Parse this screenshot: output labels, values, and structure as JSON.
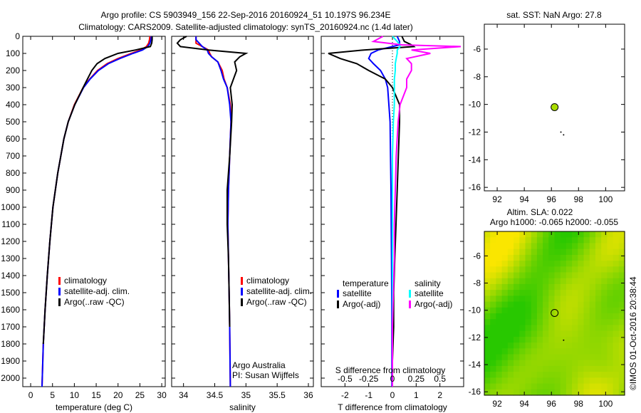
{
  "title_line1": "Argo profile: CS 5903949_156 22-Sep-2016 20160924_51 10.197S 96.234E",
  "title_line2": "Climatology: CARS2009. Satellite-adjusted climatology: synTS_20160924.nc (1.4d later)",
  "credit": "©IMOS 01-Oct-2016 20:38:44",
  "colors": {
    "climatology": "#ff0000",
    "satellite": "#0000ff",
    "argo": "#000000",
    "sal_satellite": "#00ffff",
    "sal_argo": "#ff00ff",
    "dot": "#aadd00"
  },
  "chart_data": [
    {
      "type": "line",
      "id": "temperature",
      "xlabel": "temperature (deg C)",
      "xlim": [
        -1.8,
        30.8
      ],
      "ylim": [
        2050,
        0
      ],
      "xticks": [
        "0",
        "5",
        "10",
        "15",
        "20",
        "25",
        "30"
      ],
      "xtick_values": [
        0,
        5,
        10,
        15,
        20,
        25,
        30
      ],
      "yticks": [
        "0",
        "100",
        "200",
        "300",
        "400",
        "500",
        "600",
        "700",
        "800",
        "900",
        "1000",
        "1100",
        "1200",
        "1300",
        "1400",
        "1500",
        "1600",
        "1700",
        "1800",
        "1900",
        "2000"
      ],
      "legend": [
        "climatology",
        "satellite-adj. clim.",
        "Argo(..raw -QC)"
      ],
      "legend_position": "bottom-center",
      "depth": [
        0,
        20,
        40,
        60,
        80,
        100,
        130,
        160,
        200,
        250,
        300,
        400,
        500,
        600,
        800,
        1000,
        1200,
        1400,
        1600,
        1800,
        2050
      ],
      "series": [
        {
          "name": "climatology",
          "color": "#ff0000",
          "values": [
            27.3,
            27.2,
            27.0,
            26.5,
            25.2,
            23.0,
            20.0,
            17.5,
            15.3,
            13.5,
            12.0,
            10.0,
            8.6,
            7.6,
            6.2,
            5.1,
            4.4,
            3.8,
            3.3,
            2.9,
            2.6
          ]
        },
        {
          "name": "satellite-adj. clim.",
          "color": "#0000ff",
          "values": [
            27.6,
            27.5,
            27.3,
            26.8,
            25.6,
            23.4,
            20.4,
            17.8,
            15.5,
            13.6,
            12.1,
            10.1,
            8.6,
            7.6,
            6.2,
            5.1,
            4.4,
            3.8,
            3.3,
            2.9,
            2.6
          ]
        },
        {
          "name": "Argo(..raw -QC)",
          "color": "#000000",
          "values": [
            27.8,
            27.8,
            27.7,
            27.4,
            24.0,
            20.0,
            17.0,
            15.2,
            14.0,
            13.0,
            12.0,
            10.1,
            8.6,
            7.6,
            6.2,
            5.1,
            4.4,
            3.8,
            3.3,
            2.9
          ]
        }
      ]
    },
    {
      "type": "line",
      "id": "salinity",
      "xlabel": "salinity",
      "xlim": [
        33.81,
        36.08
      ],
      "ylim": [
        2050,
        0
      ],
      "xticks": [
        "34",
        "34.5",
        "35",
        "35.5",
        "36"
      ],
      "xtick_values": [
        34,
        34.5,
        35,
        35.5,
        36
      ],
      "legend": [
        "climatology",
        "satellite-adj. clim.",
        "Argo(..raw -QC)"
      ],
      "annotation": [
        "Argo Australia",
        "PI: Susan Wijffels"
      ],
      "depth": [
        0,
        20,
        40,
        60,
        80,
        100,
        120,
        150,
        200,
        250,
        300,
        400,
        500,
        700,
        900,
        1100,
        1300,
        1500,
        1700,
        2050
      ],
      "series": [
        {
          "name": "climatology",
          "color": "#ff0000",
          "values": [
            34.2,
            34.2,
            34.2,
            34.3,
            34.4,
            34.42,
            34.45,
            34.55,
            34.62,
            34.65,
            34.7,
            34.75,
            34.76,
            34.74,
            34.72,
            34.71,
            34.72,
            34.73,
            34.74,
            34.75
          ]
        },
        {
          "name": "satellite-adj. clim.",
          "color": "#0000ff",
          "values": [
            34.2,
            34.2,
            34.25,
            34.3,
            34.38,
            34.4,
            34.45,
            34.55,
            34.6,
            34.64,
            34.7,
            34.74,
            34.76,
            34.74,
            34.72,
            34.71,
            34.72,
            34.73,
            34.74,
            34.75
          ]
        },
        {
          "name": "Argo(..raw -QC)",
          "color": "#000000",
          "values": [
            34.05,
            33.95,
            33.9,
            33.95,
            34.4,
            35.0,
            34.9,
            34.82,
            34.85,
            34.8,
            34.75,
            34.78,
            34.77,
            34.74,
            34.7,
            34.7,
            34.72,
            34.73,
            34.74
          ]
        }
      ]
    },
    {
      "type": "line",
      "id": "difference",
      "xlabel": "T difference from climatology",
      "x2label": "S difference from climatology",
      "xlim": [
        -3,
        3
      ],
      "x2lim": [
        -0.75,
        0.75
      ],
      "ylim": [
        2050,
        0
      ],
      "xticks": [
        "-2",
        "-1",
        "0",
        "1",
        "2"
      ],
      "xtick_values": [
        -2,
        -1,
        0,
        1,
        2
      ],
      "x2ticks": [
        "-0.5",
        "-0.25",
        "0",
        "0.25",
        "0.5"
      ],
      "x2tick_values": [
        -0.5,
        -0.25,
        0,
        0.25,
        0.5
      ],
      "legend_titles": [
        "temperature",
        "salinity"
      ],
      "legend": [
        "satellite",
        "Argo(-adj)",
        "satellite",
        "Argo(-adj)"
      ],
      "depth": [
        0,
        30,
        50,
        60,
        80,
        100,
        130,
        160,
        200,
        250,
        300,
        400,
        500,
        700,
        900,
        1100,
        1300,
        1500,
        1700,
        1900,
        2050
      ],
      "series": [
        {
          "name": "T satellite",
          "color": "#0000ff",
          "axis": "T",
          "values": [
            0.2,
            0.3,
            0.3,
            0.0,
            -0.6,
            -0.9,
            -1.0,
            -0.8,
            -0.5,
            -0.3,
            -0.2,
            -0.15,
            -0.1,
            -0.08,
            -0.06,
            -0.05,
            -0.04,
            -0.03,
            -0.02,
            -0.02,
            -0.02
          ]
        },
        {
          "name": "T Argo(-adj)",
          "color": "#000000",
          "axis": "T",
          "values": [
            0.4,
            0.5,
            0.8,
            0.9,
            -1.2,
            -2.7,
            -2.2,
            -1.5,
            -1.0,
            -0.3,
            0.0,
            0.3,
            0.3,
            0.25,
            0.2,
            0.15,
            0.1,
            0.05,
            0.05,
            0.0,
            0.0
          ]
        },
        {
          "name": "S satellite",
          "color": "#00ffff",
          "axis": "S",
          "values": [
            0.0,
            0.05,
            0.08,
            0.08,
            0.05,
            0.05,
            0.04,
            0.03,
            0.03,
            0.02,
            0.02,
            0.02,
            0.01,
            0.0,
            0.0,
            0.0,
            0.0,
            0.0,
            0.0,
            0.0,
            0.0
          ]
        },
        {
          "name": "S Argo(-adj)",
          "color": "#ff00ff",
          "axis": "S",
          "values": [
            -0.1,
            -0.2,
            0.1,
            0.72,
            0.2,
            0.4,
            0.15,
            0.2,
            0.2,
            0.15,
            0.15,
            0.08,
            0.06,
            0.04,
            0.03,
            0.02,
            0.02,
            0.01,
            0.0,
            0.0,
            0.0
          ]
        }
      ]
    },
    {
      "type": "scatter",
      "id": "sst_map",
      "title": "sat. SST: NaN Argo: 27.8",
      "xlim": [
        91.05,
        101.4
      ],
      "ylim": [
        -16.25,
        -4.2
      ],
      "xticks": [
        "92",
        "94",
        "96",
        "98",
        "100"
      ],
      "xtick_values": [
        92,
        94,
        96,
        98,
        100
      ],
      "yticks": [
        "-6",
        "-8",
        "-10",
        "-12",
        "-14",
        "-16"
      ],
      "ytick_values": [
        -6,
        -8,
        -10,
        -12,
        -14,
        -16
      ],
      "points": [
        {
          "lon": 96.234,
          "lat": -10.197,
          "label": "Argo"
        },
        {
          "lon": 96.7,
          "lat": -12.0
        },
        {
          "lon": 96.9,
          "lat": -12.2
        }
      ]
    },
    {
      "type": "heatmap",
      "id": "sla_map",
      "title_line1": "Altim. SLA: 0.022",
      "title_line2": "Argo h1000: -0.065 h2000: -0.055",
      "xlim": [
        91.05,
        101.4
      ],
      "ylim": [
        -16.25,
        -4.2
      ],
      "xticks": [
        "92",
        "94",
        "96",
        "98",
        "100"
      ],
      "xtick_values": [
        92,
        94,
        96,
        98,
        100
      ],
      "yticks": [
        "-6",
        "-8",
        "-10",
        "-12",
        "-14",
        "-16"
      ],
      "ytick_values": [
        -6,
        -8,
        -10,
        -12,
        -14,
        -16
      ],
      "points": [
        {
          "lon": 96.234,
          "lat": -10.197
        },
        {
          "lon": 96.9,
          "lat": -12.2
        }
      ]
    }
  ]
}
